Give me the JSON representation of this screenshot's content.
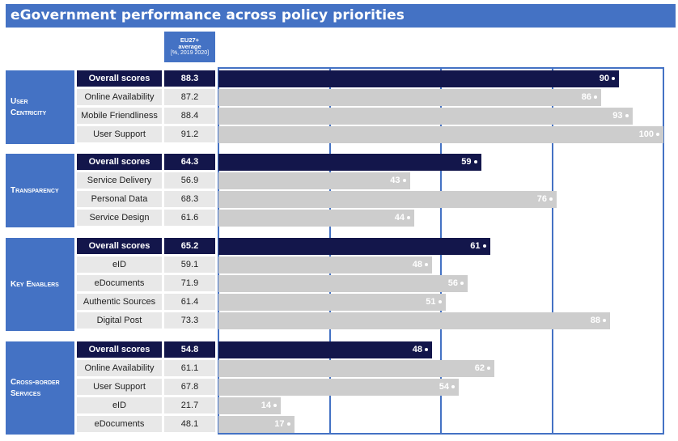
{
  "title": "eGovernment performance across policy priorities",
  "avg_header": {
    "line1": "EU27+",
    "line2": "average",
    "line3": "[%, 2019 2020]"
  },
  "colors": {
    "header": "#4472c4",
    "overall": "#13164b",
    "sub": "#cdcdcd",
    "label_bg": "#e8e8e8"
  },
  "chart_data": {
    "type": "bar",
    "orientation": "horizontal",
    "title": "eGovernment performance across policy priorities",
    "xlim": [
      0,
      100
    ],
    "grid": true,
    "groups": [
      {
        "name": "User Centricity",
        "rows": [
          {
            "label": "Overall scores",
            "avg": "88.3",
            "value": 90,
            "overall": true
          },
          {
            "label": "Online Availability",
            "avg": "87.2",
            "value": 86
          },
          {
            "label": "Mobile Friendliness",
            "avg": "88.4",
            "value": 93
          },
          {
            "label": "User Support",
            "avg": "91.2",
            "value": 100
          }
        ]
      },
      {
        "name": "Transparency",
        "rows": [
          {
            "label": "Overall scores",
            "avg": "64.3",
            "value": 59,
            "overall": true
          },
          {
            "label": "Service Delivery",
            "avg": "56.9",
            "value": 43
          },
          {
            "label": "Personal Data",
            "avg": "68.3",
            "value": 76
          },
          {
            "label": "Service Design",
            "avg": "61.6",
            "value": 44
          }
        ]
      },
      {
        "name": "Key Enablers",
        "rows": [
          {
            "label": "Overall scores",
            "avg": "65.2",
            "value": 61,
            "overall": true
          },
          {
            "label": "eID",
            "avg": "59.1",
            "value": 48
          },
          {
            "label": "eDocuments",
            "avg": "71.9",
            "value": 56
          },
          {
            "label": "Authentic Sources",
            "avg": "61.4",
            "value": 51
          },
          {
            "label": "Digital Post",
            "avg": "73.3",
            "value": 88
          }
        ]
      },
      {
        "name": "Cross-border Services",
        "rows": [
          {
            "label": "Overall scores",
            "avg": "54.8",
            "value": 48,
            "overall": true
          },
          {
            "label": "Online Availability",
            "avg": "61.1",
            "value": 62
          },
          {
            "label": "User Support",
            "avg": "67.8",
            "value": 54
          },
          {
            "label": "eID",
            "avg": "21.7",
            "value": 14
          },
          {
            "label": "eDocuments",
            "avg": "48.1",
            "value": 17
          }
        ]
      }
    ]
  }
}
